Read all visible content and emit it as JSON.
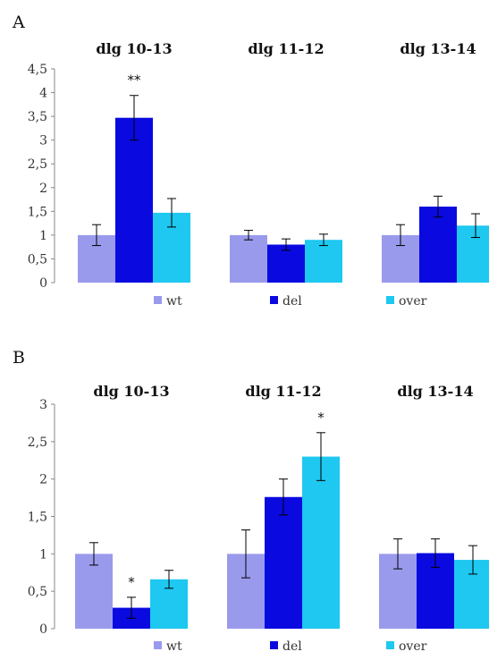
{
  "chart_data": [
    {
      "panel_label": "A",
      "type": "bar",
      "categories": [
        "dlg 10-13",
        "dlg 11-12",
        "dlg 13-14"
      ],
      "series": [
        {
          "name": "wt",
          "values": [
            1.0,
            1.0,
            1.0
          ],
          "errors": [
            0.22,
            0.1,
            0.22
          ]
        },
        {
          "name": "del",
          "values": [
            3.47,
            0.8,
            1.6
          ],
          "errors": [
            0.47,
            0.12,
            0.22
          ]
        },
        {
          "name": "over",
          "values": [
            1.47,
            0.9,
            1.2
          ],
          "errors": [
            0.3,
            0.12,
            0.25
          ]
        }
      ],
      "significance": [
        {
          "category": 0,
          "series": 1,
          "text": "**"
        }
      ],
      "ylim": [
        0,
        4.5
      ],
      "yticks": [
        "0",
        "0,5",
        "1",
        "1,5",
        "2",
        "2,5",
        "3",
        "3,5",
        "4",
        "4,5"
      ],
      "legend_position": "bottom",
      "grid": false
    },
    {
      "panel_label": "B",
      "type": "bar",
      "categories": [
        "dlg 10-13",
        "dlg 11-12",
        "dlg 13-14"
      ],
      "series": [
        {
          "name": "wt",
          "values": [
            1.0,
            1.0,
            1.0
          ],
          "errors": [
            0.15,
            0.32,
            0.2
          ]
        },
        {
          "name": "del",
          "values": [
            0.28,
            1.76,
            1.01
          ],
          "errors": [
            0.14,
            0.24,
            0.19
          ]
        },
        {
          "name": "over",
          "values": [
            0.66,
            2.3,
            0.92
          ],
          "errors": [
            0.12,
            0.32,
            0.19
          ]
        }
      ],
      "significance": [
        {
          "category": 0,
          "series": 1,
          "text": "*"
        },
        {
          "category": 1,
          "series": 2,
          "text": "*"
        }
      ],
      "ylim": [
        0,
        3
      ],
      "yticks": [
        "0",
        "0,5",
        "1",
        "1,5",
        "2",
        "2,5",
        "3"
      ],
      "legend_position": "bottom",
      "grid": false
    }
  ],
  "colors": {
    "wt": "#9a9aec",
    "del": "#0a0ae0",
    "over": "#1ec8f0"
  }
}
